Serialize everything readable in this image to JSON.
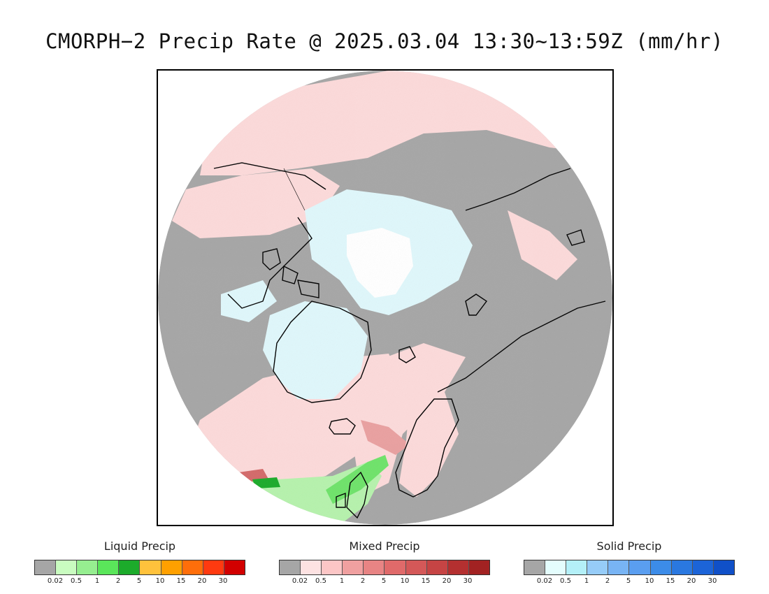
{
  "title": "CMORPH−2 Precip Rate @ 2025.03.04 13:30~13:59Z (mm/hr)",
  "map": {
    "projection": "polar-stereographic-north",
    "colors": {
      "no_precip": "#a6a6a6",
      "background": "#ffffff",
      "coastline": "#000000",
      "mixed_light": "#fcdada",
      "mixed_medium": "#e9a0a0",
      "mixed_strong": "#d46a6a",
      "solid_light": "#dff7fb",
      "solid_white": "#ffffff",
      "liquid_light": "#b6f2ad",
      "liquid_medium": "#6fe36a",
      "liquid_strong": "#1cab2b"
    }
  },
  "legends": [
    {
      "id": "liquid",
      "title": "Liquid Precip",
      "ticks": [
        "0.02",
        "0.5",
        "1",
        "2",
        "5",
        "10",
        "15",
        "20",
        "30"
      ],
      "colors": [
        "#a6a6a6",
        "#c9fcc0",
        "#96ee90",
        "#5ae65a",
        "#1cab2b",
        "#ffc23c",
        "#ffa000",
        "#ff6e0a",
        "#ff3a10",
        "#d20000"
      ]
    },
    {
      "id": "mixed",
      "title": "Mixed Precip",
      "ticks": [
        "0.02",
        "0.5",
        "1",
        "2",
        "5",
        "10",
        "15",
        "20",
        "30"
      ],
      "colors": [
        "#a6a6a6",
        "#fde2e2",
        "#fcc6c6",
        "#f0a0a0",
        "#e88484",
        "#e06a6a",
        "#d45858",
        "#c64444",
        "#b43030",
        "#a22222"
      ]
    },
    {
      "id": "solid",
      "title": "Solid Precip",
      "ticks": [
        "0.02",
        "0.5",
        "1",
        "2",
        "5",
        "10",
        "15",
        "20",
        "30"
      ],
      "colors": [
        "#a6a6a6",
        "#e4fdfd",
        "#b4f0f8",
        "#96ccf8",
        "#78b4f4",
        "#5a9ef0",
        "#3c8ce8",
        "#2a78e0",
        "#1c64d8",
        "#1050c8"
      ]
    }
  ]
}
